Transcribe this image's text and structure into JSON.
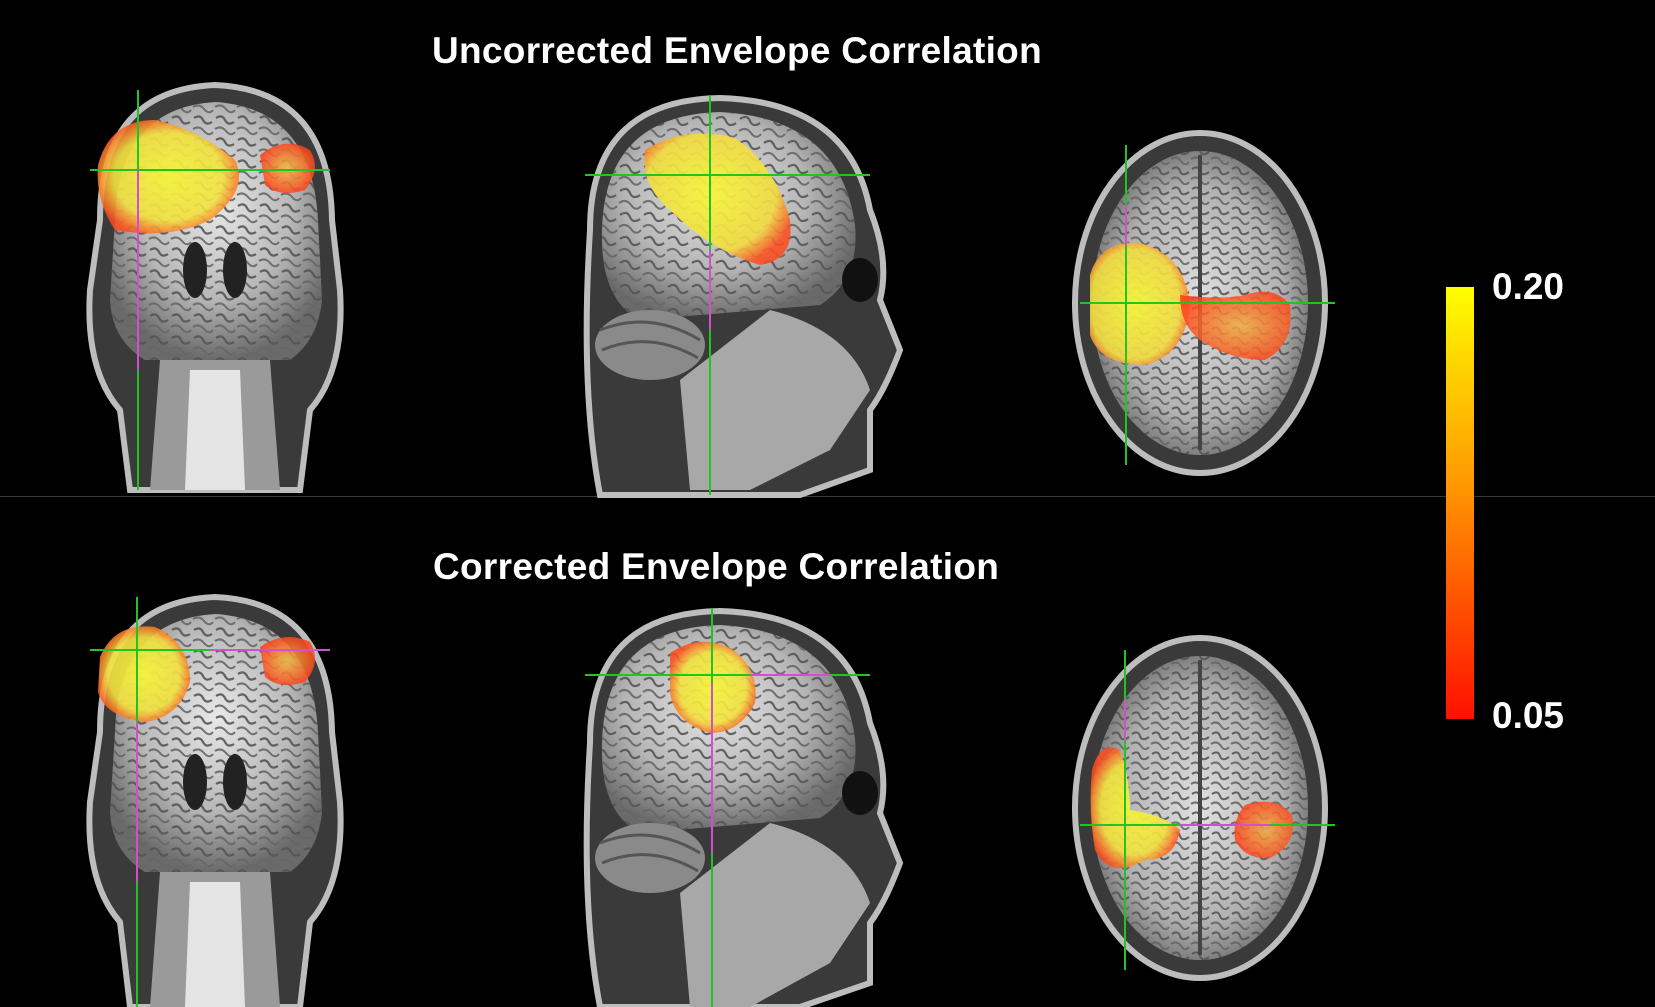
{
  "rows": [
    {
      "title": "Uncorrected Envelope Correlation"
    },
    {
      "title": "Corrected Envelope Correlation"
    }
  ],
  "views": [
    "coronal",
    "sagittal",
    "axial"
  ],
  "colorbar": {
    "max_label": "0.20",
    "min_label": "0.05",
    "colors": [
      "#ffff00",
      "#ff1000"
    ]
  },
  "colors": {
    "background": "#000000",
    "crosshair_green": "#22c422",
    "crosshair_magenta": "#d24fd2",
    "overlay_yellow": "#f2f23a",
    "overlay_red": "#ff3a1a"
  }
}
